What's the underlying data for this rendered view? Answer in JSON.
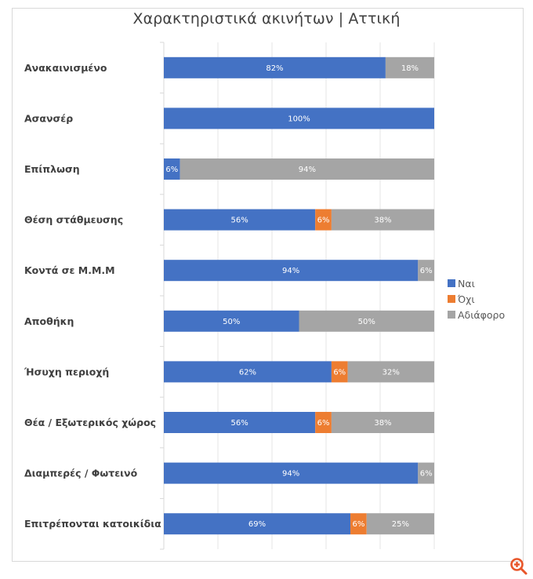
{
  "chart_data": {
    "type": "bar",
    "orientation": "horizontal",
    "stacked": "100%",
    "title": "Χαρακτηριστικά ακινήτων | Αττική",
    "categories": [
      "Ανακαινισμένο",
      "Ασανσέρ",
      "Επίπλωση",
      "Θέση στάθμευσης",
      "Κοντά σε Μ.Μ.Μ",
      "Αποθήκη",
      "Ήσυχη περιοχή",
      "Θέα / Εξωτερικός χώρος",
      "Διαμπερές / Φωτεινό",
      "Επιτρέπονται κατοικίδια"
    ],
    "series": [
      {
        "name": "Ναι",
        "color": "#4472c4",
        "values": [
          82,
          100,
          6,
          56,
          94,
          50,
          62,
          56,
          94,
          69
        ]
      },
      {
        "name": "Όχι",
        "color": "#ed7d31",
        "values": [
          0,
          0,
          0,
          6,
          0,
          0,
          6,
          6,
          0,
          6
        ]
      },
      {
        "name": "Αδιάφορο",
        "color": "#a5a5a5",
        "values": [
          18,
          0,
          94,
          38,
          6,
          50,
          32,
          38,
          6,
          25
        ]
      }
    ],
    "value_suffix": "%",
    "xlim": [
      0,
      100
    ],
    "x_gridlines": [
      0,
      20,
      40,
      60,
      80,
      100
    ],
    "x_tick_labels_visible": false,
    "grid": true,
    "legend_position": "right",
    "data_labels": true
  },
  "toolbar": {
    "zoom_icon": "zoom-in-icon"
  }
}
